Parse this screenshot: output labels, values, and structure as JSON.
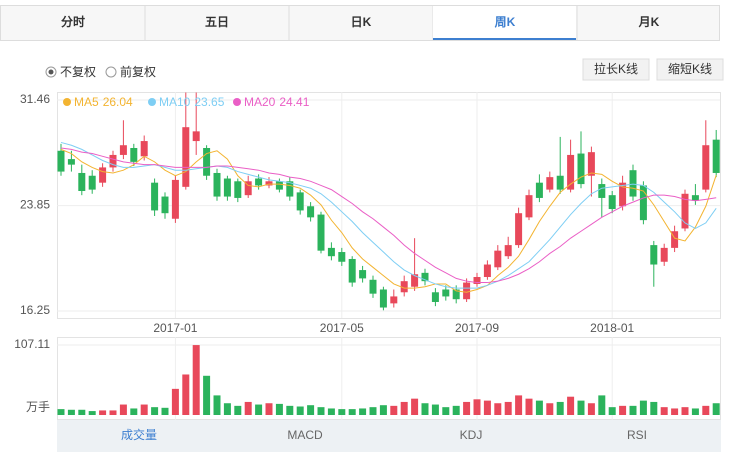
{
  "tabs": [
    "分时",
    "五日",
    "日K",
    "周K",
    "月K"
  ],
  "active_tab": 3,
  "adjust_options": [
    "不复权",
    "前复权"
  ],
  "adjust_selected": 0,
  "buttons": [
    "拉长K线",
    "缩短K线"
  ],
  "indicator_tabs": [
    "成交量",
    "MACD",
    "KDJ",
    "RSI"
  ],
  "active_indicator": 0,
  "chart_data": [
    {
      "type": "candlestick",
      "up_color": "#e8485a",
      "down_color": "#2bb35c",
      "categories": [
        null,
        null,
        null,
        null,
        null,
        null,
        null,
        null,
        null,
        null,
        null,
        "2017-01",
        null,
        null,
        null,
        null,
        null,
        null,
        null,
        null,
        null,
        null,
        null,
        null,
        null,
        null,
        null,
        "2017-05",
        null,
        null,
        null,
        null,
        null,
        null,
        null,
        null,
        null,
        null,
        null,
        null,
        "2017-09",
        null,
        null,
        null,
        null,
        null,
        null,
        null,
        null,
        null,
        null,
        null,
        null,
        "2018-01",
        null,
        null,
        null,
        null,
        null,
        null,
        null,
        null,
        null,
        null
      ],
      "open": [
        27.8,
        27.2,
        26.2,
        26.0,
        25.5,
        26.6,
        27.5,
        28.0,
        27.4,
        25.5,
        24.5,
        22.9,
        25.2,
        28.5,
        28.0,
        26.2,
        25.8,
        25.6,
        24.6,
        25.8,
        25.3,
        25.6,
        25.6,
        24.8,
        23.8,
        23.2,
        20.8,
        20.5,
        20.0,
        19.2,
        18.5,
        17.8,
        16.8,
        17.6,
        18.0,
        19.0,
        17.6,
        17.8,
        17.8,
        17.1,
        18.2,
        18.7,
        19.4,
        20.2,
        21.0,
        23.0,
        25.5,
        25.0,
        26.0,
        25.0,
        27.6,
        26.0,
        25.4,
        24.6,
        23.8,
        26.4,
        25.3,
        21.0,
        19.8,
        20.8,
        22.2,
        24.6,
        25.0,
        28.6
      ],
      "close": [
        26.3,
        26.8,
        24.9,
        25.0,
        26.6,
        27.5,
        28.2,
        27.0,
        28.5,
        23.5,
        23.3,
        25.7,
        29.5,
        29.2,
        26.0,
        24.5,
        24.5,
        24.4,
        25.6,
        25.3,
        25.6,
        25.0,
        24.5,
        23.5,
        23.0,
        20.6,
        20.2,
        19.8,
        18.3,
        18.6,
        17.5,
        16.5,
        17.3,
        18.4,
        18.9,
        18.4,
        16.9,
        17.3,
        17.1,
        18.3,
        18.7,
        19.6,
        20.6,
        21.0,
        23.3,
        24.6,
        24.4,
        25.9,
        25.0,
        27.5,
        25.4,
        27.7,
        24.4,
        23.6,
        25.5,
        24.5,
        22.8,
        19.6,
        20.8,
        22.0,
        24.7,
        24.2,
        28.2,
        26.2
      ],
      "high": [
        28.3,
        27.8,
        26.8,
        26.4,
        26.9,
        27.8,
        30.0,
        28.3,
        28.9,
        25.8,
        24.8,
        26.0,
        32.0,
        32.0,
        28.2,
        26.5,
        26.0,
        25.8,
        26.0,
        26.1,
        25.9,
        25.8,
        25.9,
        25.0,
        24.1,
        23.4,
        21.2,
        20.8,
        20.2,
        19.5,
        18.8,
        18.0,
        17.8,
        18.8,
        21.5,
        19.3,
        17.9,
        18.1,
        18.1,
        18.6,
        19.0,
        19.9,
        21.0,
        21.6,
        23.7,
        25.0,
        26.1,
        26.3,
        28.8,
        28.6,
        29.2,
        28.1,
        25.8,
        24.9,
        26.0,
        26.8,
        25.6,
        21.3,
        21.1,
        22.4,
        25.0,
        25.4,
        30.0,
        29.3
      ],
      "low": [
        26.0,
        26.3,
        24.6,
        24.7,
        25.2,
        26.3,
        27.2,
        26.7,
        27.1,
        23.1,
        22.9,
        22.6,
        25.0,
        27.5,
        25.7,
        24.2,
        24.2,
        24.1,
        24.4,
        25.0,
        25.1,
        24.8,
        24.2,
        23.2,
        22.7,
        20.4,
        19.9,
        19.5,
        18.0,
        18.3,
        17.2,
        16.3,
        16.5,
        17.3,
        17.7,
        18.1,
        16.6,
        17.0,
        16.8,
        16.9,
        18.0,
        18.5,
        19.2,
        20.0,
        20.8,
        22.8,
        24.1,
        24.8,
        24.7,
        24.8,
        25.1,
        24.5,
        23.0,
        23.3,
        23.5,
        24.2,
        22.5,
        18.0,
        19.5,
        20.5,
        22.0,
        23.9,
        24.8,
        25.9
      ],
      "series": [
        {
          "name": "MA5",
          "color": "#f3b431",
          "values": [
            27.9,
            27.6,
            27.0,
            26.6,
            26.3,
            26.2,
            26.4,
            26.8,
            27.4,
            27.0,
            26.4,
            26.0,
            26.3,
            27.0,
            27.6,
            27.8,
            27.2,
            26.0,
            25.3,
            25.2,
            25.4,
            25.4,
            25.3,
            25.1,
            24.6,
            23.9,
            22.8,
            21.9,
            20.8,
            20.0,
            19.4,
            18.8,
            18.2,
            17.9,
            17.9,
            18.0,
            18.2,
            18.2,
            17.7,
            17.6,
            17.8,
            18.1,
            18.8,
            19.4,
            20.2,
            21.4,
            22.7,
            23.8,
            24.8,
            25.4,
            25.9,
            26.2,
            26.1,
            25.6,
            25.2,
            25.1,
            24.9,
            23.9,
            22.7,
            21.5,
            21.3,
            22.3,
            23.8,
            26.04
          ]
        },
        {
          "name": "MA10",
          "color": "#7ecef4",
          "values": [
            28.4,
            28.2,
            27.9,
            27.5,
            27.1,
            26.8,
            26.6,
            26.6,
            26.7,
            26.8,
            26.6,
            26.4,
            26.4,
            26.5,
            26.6,
            26.7,
            26.6,
            26.3,
            26.1,
            25.9,
            25.7,
            25.6,
            25.5,
            25.3,
            25.1,
            24.7,
            24.1,
            23.4,
            22.7,
            21.9,
            21.2,
            20.5,
            19.8,
            19.2,
            18.8,
            18.5,
            18.2,
            18.0,
            17.9,
            17.9,
            17.9,
            18.1,
            18.4,
            18.8,
            19.3,
            19.8,
            20.6,
            21.4,
            22.3,
            23.2,
            24.0,
            24.7,
            25.1,
            25.2,
            25.3,
            25.4,
            25.3,
            24.8,
            24.1,
            23.4,
            22.6,
            22.2,
            22.6,
            23.65
          ]
        },
        {
          "name": "MA20",
          "color": "#ea5fc6",
          "values": [
            28.0,
            27.9,
            27.7,
            27.6,
            27.4,
            27.2,
            27.0,
            26.9,
            26.8,
            26.8,
            26.7,
            26.6,
            26.6,
            26.6,
            26.6,
            26.7,
            26.7,
            26.6,
            26.5,
            26.4,
            26.2,
            26.1,
            25.9,
            25.8,
            25.6,
            25.3,
            25.0,
            24.5,
            24.0,
            23.4,
            22.9,
            22.3,
            21.7,
            21.0,
            20.4,
            19.9,
            19.4,
            19.0,
            18.6,
            18.4,
            18.3,
            18.3,
            18.4,
            18.6,
            18.9,
            19.3,
            19.8,
            20.4,
            20.9,
            21.5,
            22.0,
            22.5,
            23.0,
            23.4,
            23.8,
            24.1,
            24.4,
            24.6,
            24.6,
            24.5,
            24.3,
            24.2,
            24.3,
            24.41
          ]
        }
      ],
      "ylim": [
        16.25,
        31.46
      ],
      "yticks": [
        16.25,
        23.85,
        31.46
      ],
      "grid": true
    },
    {
      "type": "bar",
      "y_label": "万手",
      "values": [
        9,
        8,
        8,
        6,
        7,
        7,
        16,
        10,
        16,
        12,
        11,
        40,
        62,
        107,
        60,
        30,
        18,
        14,
        20,
        16,
        18,
        17,
        14,
        13,
        15,
        12,
        10,
        9,
        9,
        10,
        12,
        15,
        14,
        20,
        25,
        18,
        16,
        12,
        14,
        20,
        24,
        22,
        18,
        20,
        30,
        25,
        22,
        18,
        20,
        28,
        22,
        18,
        30,
        12,
        14,
        14,
        22,
        20,
        12,
        10,
        12,
        10,
        14,
        18
      ],
      "ylim": [
        0,
        107.11
      ],
      "yticks": [
        107.11
      ],
      "grid": true
    }
  ]
}
